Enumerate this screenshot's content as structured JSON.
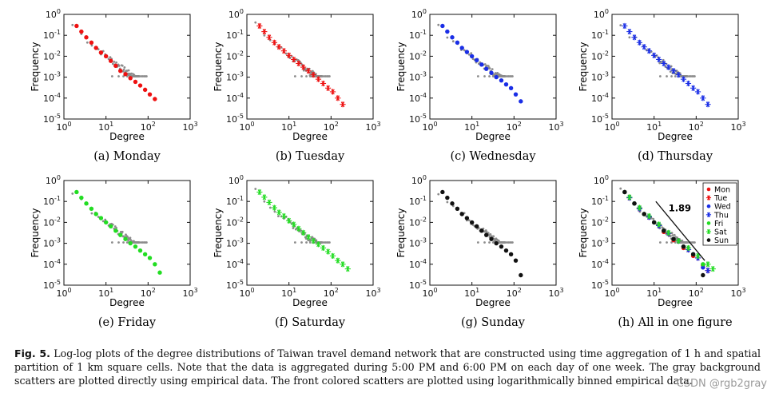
{
  "chart_data": [
    {
      "type": "scatter",
      "id": "a",
      "subcaption": "(a) Monday",
      "xlabel": "Degree",
      "ylabel": "Frequency",
      "xscale": "log",
      "yscale": "log",
      "xlim": [
        1,
        1000
      ],
      "ylim": [
        1e-05,
        1
      ],
      "xticks": [
        "10^0",
        "10^1",
        "10^2",
        "10^3"
      ],
      "yticks": [
        "10^-5",
        "10^-4",
        "10^-3",
        "10^-2",
        "10^-1",
        "10^0"
      ],
      "series": [
        {
          "name": "Mon",
          "color": "#ee1111",
          "marker": "dot",
          "x": [
            2,
            2.6,
            3.4,
            4.5,
            5.8,
            7.6,
            10,
            13,
            17,
            22,
            29,
            38,
            50,
            65,
            85,
            110,
            145
          ],
          "y": [
            0.28,
            0.15,
            0.08,
            0.045,
            0.025,
            0.015,
            0.01,
            0.006,
            0.0035,
            0.002,
            0.0014,
            0.0009,
            0.0006,
            0.0004,
            0.00025,
            0.00015,
            9e-05
          ]
        }
      ]
    },
    {
      "type": "scatter",
      "id": "b",
      "subcaption": "(b) Tuesday",
      "xlabel": "Degree",
      "ylabel": "Frequency",
      "xscale": "log",
      "yscale": "log",
      "xlim": [
        1,
        1000
      ],
      "ylim": [
        1e-05,
        1
      ],
      "xticks": [
        "10^0",
        "10^1",
        "10^2",
        "10^3"
      ],
      "yticks": [
        "10^-5",
        "10^-4",
        "10^-3",
        "10^-2",
        "10^-1",
        "10^0"
      ],
      "series": [
        {
          "name": "Tue",
          "color": "#ee1111",
          "marker": "asterisk",
          "x": [
            2,
            2.6,
            3.4,
            4.5,
            5.8,
            7.6,
            10,
            13,
            17,
            22,
            29,
            38,
            50,
            65,
            85,
            110,
            145,
            190
          ],
          "y": [
            0.28,
            0.15,
            0.08,
            0.045,
            0.028,
            0.018,
            0.011,
            0.007,
            0.0045,
            0.003,
            0.002,
            0.0013,
            0.0008,
            0.0005,
            0.0003,
            0.0002,
            0.0001,
            5e-05
          ]
        }
      ]
    },
    {
      "type": "scatter",
      "id": "c",
      "subcaption": "(c) Wednesday",
      "xlabel": "Degree",
      "ylabel": "Frequency",
      "xscale": "log",
      "yscale": "log",
      "xlim": [
        1,
        1000
      ],
      "ylim": [
        1e-05,
        1
      ],
      "xticks": [
        "10^0",
        "10^1",
        "10^2",
        "10^3"
      ],
      "yticks": [
        "10^-5",
        "10^-4",
        "10^-3",
        "10^-2",
        "10^-1",
        "10^0"
      ],
      "series": [
        {
          "name": "Wed",
          "color": "#1a2ee6",
          "marker": "dot",
          "x": [
            2,
            2.6,
            3.4,
            4.5,
            5.8,
            7.6,
            10,
            13,
            17,
            22,
            29,
            38,
            50,
            65,
            85,
            110,
            145
          ],
          "y": [
            0.28,
            0.15,
            0.08,
            0.045,
            0.025,
            0.016,
            0.01,
            0.0065,
            0.004,
            0.0025,
            0.0016,
            0.001,
            0.0007,
            0.00045,
            0.0003,
            0.00015,
            7e-05
          ]
        }
      ]
    },
    {
      "type": "scatter",
      "id": "d",
      "subcaption": "(d) Thursday",
      "xlabel": "Degree",
      "ylabel": "Frequency",
      "xscale": "log",
      "yscale": "log",
      "xlim": [
        1,
        1000
      ],
      "ylim": [
        1e-05,
        1
      ],
      "xticks": [
        "10^0",
        "10^1",
        "10^2",
        "10^3"
      ],
      "yticks": [
        "10^-5",
        "10^-4",
        "10^-3",
        "10^-2",
        "10^-1",
        "10^0"
      ],
      "series": [
        {
          "name": "Thu",
          "color": "#1a2ee6",
          "marker": "asterisk",
          "x": [
            2,
            2.6,
            3.4,
            4.5,
            5.8,
            7.6,
            10,
            13,
            17,
            22,
            29,
            38,
            50,
            65,
            85,
            110,
            145,
            190
          ],
          "y": [
            0.28,
            0.15,
            0.08,
            0.045,
            0.028,
            0.018,
            0.011,
            0.007,
            0.0045,
            0.003,
            0.002,
            0.0013,
            0.0008,
            0.0005,
            0.0003,
            0.0002,
            0.0001,
            5e-05
          ]
        }
      ]
    },
    {
      "type": "scatter",
      "id": "e",
      "subcaption": "(e) Friday",
      "xlabel": "Degree",
      "ylabel": "Frequency",
      "xscale": "log",
      "yscale": "log",
      "xlim": [
        1,
        1000
      ],
      "ylim": [
        1e-05,
        1
      ],
      "xticks": [
        "10^0",
        "10^1",
        "10^2",
        "10^3"
      ],
      "yticks": [
        "10^-5",
        "10^-4",
        "10^-3",
        "10^-2",
        "10^-1",
        "10^0"
      ],
      "series": [
        {
          "name": "Fri",
          "color": "#22dd22",
          "marker": "dot",
          "x": [
            2,
            2.6,
            3.4,
            4.5,
            5.8,
            7.6,
            10,
            13,
            17,
            22,
            29,
            38,
            50,
            65,
            85,
            110,
            145,
            190
          ],
          "y": [
            0.28,
            0.15,
            0.08,
            0.045,
            0.025,
            0.016,
            0.01,
            0.0065,
            0.004,
            0.0025,
            0.0016,
            0.001,
            0.0007,
            0.00045,
            0.0003,
            0.0002,
            0.0001,
            4e-05
          ]
        }
      ]
    },
    {
      "type": "scatter",
      "id": "f",
      "subcaption": "(f) Saturday",
      "xlabel": "Degree",
      "ylabel": "Frequency",
      "xscale": "log",
      "yscale": "log",
      "xlim": [
        1,
        1000
      ],
      "ylim": [
        1e-05,
        1
      ],
      "xticks": [
        "10^0",
        "10^1",
        "10^2",
        "10^3"
      ],
      "yticks": [
        "10^-5",
        "10^-4",
        "10^-3",
        "10^-2",
        "10^-1",
        "10^0"
      ],
      "series": [
        {
          "name": "Sat",
          "color": "#22dd22",
          "marker": "asterisk",
          "x": [
            2,
            2.6,
            3.4,
            4.5,
            5.8,
            7.6,
            10,
            13,
            17,
            22,
            29,
            38,
            50,
            65,
            85,
            110,
            145,
            190,
            250
          ],
          "y": [
            0.28,
            0.16,
            0.09,
            0.05,
            0.03,
            0.02,
            0.012,
            0.008,
            0.005,
            0.0032,
            0.002,
            0.0013,
            0.0009,
            0.0006,
            0.0004,
            0.00025,
            0.00015,
            0.0001,
            6e-05
          ]
        }
      ]
    },
    {
      "type": "scatter",
      "id": "g",
      "subcaption": "(g) Sunday",
      "xlabel": "Degree",
      "ylabel": "Frequency",
      "xscale": "log",
      "yscale": "log",
      "xlim": [
        1,
        1000
      ],
      "ylim": [
        1e-05,
        1
      ],
      "xticks": [
        "10^0",
        "10^1",
        "10^2",
        "10^3"
      ],
      "yticks": [
        "10^-5",
        "10^-4",
        "10^-3",
        "10^-2",
        "10^-1",
        "10^0"
      ],
      "series": [
        {
          "name": "Sun",
          "color": "#111111",
          "marker": "dot",
          "x": [
            2,
            2.6,
            3.4,
            4.5,
            5.8,
            7.6,
            10,
            13,
            17,
            22,
            29,
            38,
            50,
            65,
            85,
            110,
            145
          ],
          "y": [
            0.28,
            0.15,
            0.08,
            0.045,
            0.025,
            0.016,
            0.01,
            0.0065,
            0.004,
            0.0025,
            0.0016,
            0.001,
            0.0007,
            0.00045,
            0.0003,
            0.00015,
            3e-05
          ]
        }
      ]
    },
    {
      "type": "scatter",
      "id": "h",
      "subcaption": "(h) All in one figure",
      "xlabel": "Degree",
      "ylabel": "Frequency",
      "xscale": "log",
      "yscale": "log",
      "xlim": [
        1,
        1000
      ],
      "ylim": [
        1e-05,
        1
      ],
      "xticks": [
        "10^0",
        "10^1",
        "10^2",
        "10^3"
      ],
      "yticks": [
        "10^-5",
        "10^-4",
        "10^-3",
        "10^-2",
        "10^-1",
        "10^0"
      ],
      "legend": [
        "Mon",
        "Tue",
        "Wed",
        "Thu",
        "Fri",
        "Sat",
        "Sun"
      ],
      "legend_position": "top-right",
      "annotation": "1.89",
      "series": [
        {
          "name": "Mon",
          "color": "#ee1111",
          "marker": "dot",
          "x": [
            2,
            3.4,
            5.8,
            10,
            17,
            29,
            50,
            85,
            145
          ],
          "y": [
            0.28,
            0.08,
            0.025,
            0.01,
            0.0035,
            0.0014,
            0.0006,
            0.00025,
            9e-05
          ]
        },
        {
          "name": "Tue",
          "color": "#ee1111",
          "marker": "asterisk",
          "x": [
            2.6,
            4.5,
            7.6,
            13,
            22,
            38,
            65,
            110,
            190
          ],
          "y": [
            0.15,
            0.045,
            0.018,
            0.007,
            0.003,
            0.0013,
            0.0005,
            0.0002,
            5e-05
          ]
        },
        {
          "name": "Wed",
          "color": "#1a2ee6",
          "marker": "dot",
          "x": [
            2,
            3.4,
            5.8,
            10,
            17,
            29,
            50,
            85,
            145
          ],
          "y": [
            0.28,
            0.08,
            0.025,
            0.01,
            0.004,
            0.0016,
            0.0007,
            0.0003,
            7e-05
          ]
        },
        {
          "name": "Thu",
          "color": "#1a2ee6",
          "marker": "asterisk",
          "x": [
            2.6,
            4.5,
            7.6,
            13,
            22,
            38,
            65,
            110,
            190
          ],
          "y": [
            0.15,
            0.045,
            0.018,
            0.007,
            0.003,
            0.0013,
            0.0005,
            0.0002,
            5e-05
          ]
        },
        {
          "name": "Fri",
          "color": "#22dd22",
          "marker": "dot",
          "x": [
            2,
            3.4,
            5.8,
            10,
            17,
            29,
            50,
            85,
            145
          ],
          "y": [
            0.28,
            0.08,
            0.025,
            0.01,
            0.004,
            0.0016,
            0.0007,
            0.0003,
            0.0001
          ]
        },
        {
          "name": "Sat",
          "color": "#22dd22",
          "marker": "asterisk",
          "x": [
            2.6,
            4.5,
            7.6,
            13,
            22,
            38,
            65,
            110,
            190,
            250
          ],
          "y": [
            0.16,
            0.05,
            0.02,
            0.008,
            0.0032,
            0.0013,
            0.0006,
            0.00025,
            0.0001,
            6e-05
          ]
        },
        {
          "name": "Sun",
          "color": "#111111",
          "marker": "dot",
          "x": [
            2,
            3.4,
            5.8,
            10,
            17,
            29,
            50,
            85,
            145
          ],
          "y": [
            0.28,
            0.08,
            0.025,
            0.01,
            0.004,
            0.0016,
            0.0007,
            0.0003,
            3e-05
          ]
        }
      ]
    }
  ],
  "caption": {
    "label": "Fig. 5.",
    "text": "Log-log plots of the degree distributions of Taiwan travel demand network that are constructed using time aggregation of 1 h and spatial partition of 1 km square cells. Note that the data is aggregated during 5:00 PM and 6:00 PM on each day of one week. The gray background scatters are plotted directly using empirical data. The front colored scatters are plotted using logarithmically binned empirical data."
  },
  "watermark": "CSDN @rgb2gray",
  "colors": {
    "background_scatter": "#8c8c8c",
    "red": "#ee1111",
    "blue": "#1a2ee6",
    "green": "#22dd22",
    "black": "#111111"
  }
}
